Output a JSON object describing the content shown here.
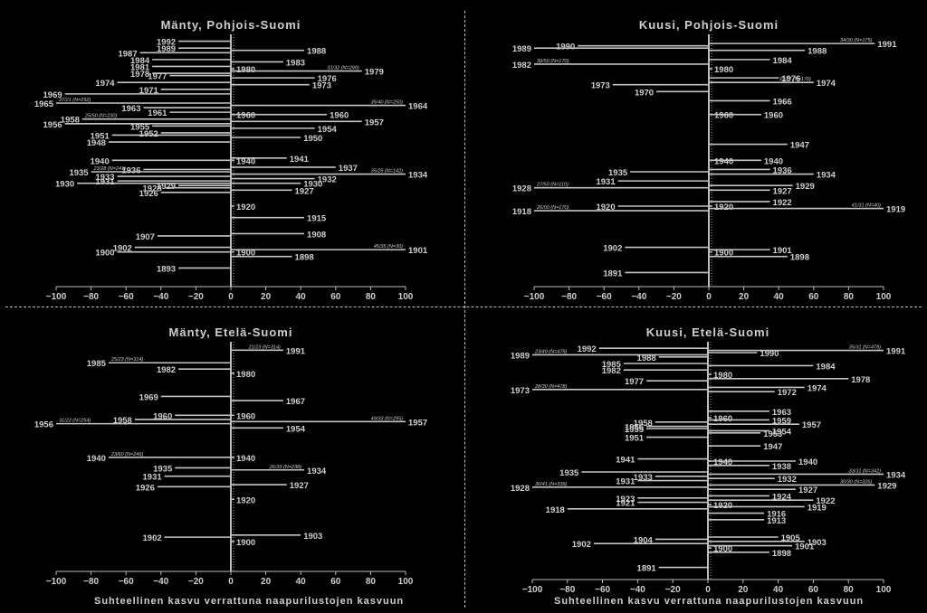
{
  "chart_data": [
    {
      "type": "bar",
      "orientation": "horizontal",
      "title": "Mänty, Pohjois-Suomi",
      "xlim": [
        -100,
        100
      ],
      "xticks": [
        "−100",
        "−80",
        "−60",
        "−40",
        "−20",
        "0",
        "20",
        "40",
        "60",
        "80",
        "100"
      ],
      "ylim": [
        1890,
        1995
      ],
      "bars": [
        {
          "year": "1992",
          "value": -30
        },
        {
          "year": "1989",
          "value": -30
        },
        {
          "year": "1988",
          "value": 42
        },
        {
          "year": "1987",
          "value": -52
        },
        {
          "year": "1984",
          "value": -45
        },
        {
          "year": "1983",
          "value": 30
        },
        {
          "year": "1981",
          "value": -45
        },
        {
          "year": "1980",
          "value": 2
        },
        {
          "year": "1979",
          "value": 75,
          "note": "31/32 (N=290)"
        },
        {
          "year": "1978",
          "value": -45
        },
        {
          "year": "1977",
          "value": -35
        },
        {
          "year": "1976",
          "value": 48
        },
        {
          "year": "1974",
          "value": -65
        },
        {
          "year": "1973",
          "value": 45
        },
        {
          "year": "1971",
          "value": -40
        },
        {
          "year": "1969",
          "value": -95
        },
        {
          "year": "1965",
          "value": -100,
          "note": "27/21 (N=252)"
        },
        {
          "year": "1964",
          "value": 100,
          "note": "35/40 (N=250)"
        },
        {
          "year": "1963",
          "value": -50
        },
        {
          "year": "1961",
          "value": -35
        },
        {
          "year": "1960",
          "value": 2
        },
        {
          "year": "1960",
          "value": 55
        },
        {
          "year": "1958",
          "value": -85,
          "note": "25/50 (N=230)"
        },
        {
          "year": "1957",
          "value": 75
        },
        {
          "year": "1956",
          "value": -95
        },
        {
          "year": "1955",
          "value": -45
        },
        {
          "year": "1954",
          "value": 48
        },
        {
          "year": "1952",
          "value": -40
        },
        {
          "year": "1951",
          "value": -68
        },
        {
          "year": "1950",
          "value": 40
        },
        {
          "year": "1948",
          "value": -70
        },
        {
          "year": "1941",
          "value": 32
        },
        {
          "year": "1940",
          "value": -68
        },
        {
          "year": "1940",
          "value": 2
        },
        {
          "year": "1937",
          "value": 60
        },
        {
          "year": "1936",
          "value": -50
        },
        {
          "year": "1935",
          "value": -80,
          "note": "23/28 (N=241)"
        },
        {
          "year": "1934",
          "value": 100,
          "note": "35/25 (N=142)"
        },
        {
          "year": "1933",
          "value": -65
        },
        {
          "year": "1932",
          "value": 48
        },
        {
          "year": "1931",
          "value": -65
        },
        {
          "year": "1930",
          "value": 40
        },
        {
          "year": "1930",
          "value": -88
        },
        {
          "year": "1929",
          "value": -30
        },
        {
          "year": "1928",
          "value": -38
        },
        {
          "year": "1927",
          "value": 35
        },
        {
          "year": "1926",
          "value": -40
        },
        {
          "year": "1920",
          "value": 2
        },
        {
          "year": "1915",
          "value": 42
        },
        {
          "year": "1908",
          "value": 42
        },
        {
          "year": "1907",
          "value": -42
        },
        {
          "year": "1902",
          "value": -55
        },
        {
          "year": "1901",
          "value": 100,
          "note": "45/35 (N=30)"
        },
        {
          "year": "1900",
          "value": -65
        },
        {
          "year": "1900",
          "value": 2
        },
        {
          "year": "1898",
          "value": 35
        },
        {
          "year": "1893",
          "value": -30
        }
      ]
    },
    {
      "type": "bar",
      "orientation": "horizontal",
      "title": "Kuusi, Pohjois-Suomi",
      "xlim": [
        -100,
        100
      ],
      "xticks": [
        "−100",
        "−80",
        "−60",
        "−40",
        "−20",
        "0",
        "20",
        "40",
        "60",
        "80",
        "100"
      ],
      "ylim": [
        1890,
        1995
      ],
      "bars": [
        {
          "year": "1991",
          "value": 95,
          "note": "34/30 (N=175)"
        },
        {
          "year": "1990",
          "value": -75
        },
        {
          "year": "1989",
          "value": -100
        },
        {
          "year": "1988",
          "value": 55
        },
        {
          "year": "1984",
          "value": 35
        },
        {
          "year": "1982",
          "value": -100,
          "note": "39/50 (N=170)"
        },
        {
          "year": "1980",
          "value": 2
        },
        {
          "year": "1976",
          "value": 40
        },
        {
          "year": "1974",
          "value": 60,
          "note": "33/27 (N=170)"
        },
        {
          "year": "1973",
          "value": -55
        },
        {
          "year": "1970",
          "value": -30
        },
        {
          "year": "1966",
          "value": 35
        },
        {
          "year": "1960",
          "value": 2
        },
        {
          "year": "1960",
          "value": 30
        },
        {
          "year": "1947",
          "value": 45
        },
        {
          "year": "1940",
          "value": 2
        },
        {
          "year": "1940",
          "value": 30
        },
        {
          "year": "1936",
          "value": 35
        },
        {
          "year": "1935",
          "value": -45
        },
        {
          "year": "1934",
          "value": 60
        },
        {
          "year": "1931",
          "value": -52
        },
        {
          "year": "1929",
          "value": 48
        },
        {
          "year": "1928",
          "value": -100,
          "note": "27/50 (N=110)"
        },
        {
          "year": "1927",
          "value": 35
        },
        {
          "year": "1922",
          "value": 35
        },
        {
          "year": "1920",
          "value": -52
        },
        {
          "year": "1920",
          "value": 2
        },
        {
          "year": "1919",
          "value": 100,
          "note": "41/31 (N=40)"
        },
        {
          "year": "1918",
          "value": -100,
          "note": "26/00 (N=170)"
        },
        {
          "year": "1902",
          "value": -48
        },
        {
          "year": "1901",
          "value": 35
        },
        {
          "year": "1900",
          "value": 2
        },
        {
          "year": "1898",
          "value": 45
        },
        {
          "year": "1891",
          "value": -48
        }
      ]
    },
    {
      "type": "bar",
      "orientation": "horizontal",
      "title": "Mänty, Etelä-Suomi",
      "xlim": [
        -100,
        100
      ],
      "xticks": [
        "−100",
        "−80",
        "−60",
        "−40",
        "−20",
        "0",
        "20",
        "40",
        "60",
        "80",
        "100"
      ],
      "xlabel": "Suhteellinen kasvu verrattuna naapurilustojen kasvuun",
      "ylim": [
        1890,
        1995
      ],
      "bars": [
        {
          "year": "1991",
          "value": 30,
          "note": "21/23 (N=314)"
        },
        {
          "year": "1985",
          "value": -70,
          "note": "25/23 (N=314)"
        },
        {
          "year": "1982",
          "value": -30
        },
        {
          "year": "1980",
          "value": 2
        },
        {
          "year": "1969",
          "value": -40
        },
        {
          "year": "1967",
          "value": 30
        },
        {
          "year": "1960",
          "value": -32
        },
        {
          "year": "1960",
          "value": 2
        },
        {
          "year": "1958",
          "value": -55
        },
        {
          "year": "1957",
          "value": 100,
          "note": "49/33 (N=295)"
        },
        {
          "year": "1956",
          "value": -100,
          "note": "31/22 (N=254)"
        },
        {
          "year": "1954",
          "value": 30
        },
        {
          "year": "1940",
          "value": -70,
          "note": "23/60 (N=246)"
        },
        {
          "year": "1940",
          "value": 2
        },
        {
          "year": "1935",
          "value": -32
        },
        {
          "year": "1934",
          "value": 42,
          "note": "26/33 (N=238)"
        },
        {
          "year": "1931",
          "value": -38
        },
        {
          "year": "1927",
          "value": 32
        },
        {
          "year": "1926",
          "value": -42
        },
        {
          "year": "1920",
          "value": 2
        },
        {
          "year": "1903",
          "value": 40
        },
        {
          "year": "1902",
          "value": -38
        },
        {
          "year": "1900",
          "value": 2
        }
      ]
    },
    {
      "type": "bar",
      "orientation": "horizontal",
      "title": "Kuusi, Etelä-Suomi",
      "xlim": [
        -100,
        100
      ],
      "xticks": [
        "−100",
        "−80",
        "−60",
        "−40",
        "−20",
        "0",
        "20",
        "40",
        "60",
        "80",
        "100"
      ],
      "xlabel": "Suhteellinen kasvu verrattuna naapurilustojen kasvuun",
      "ylim": [
        1890,
        1995
      ],
      "bars": [
        {
          "year": "1992",
          "value": -62
        },
        {
          "year": "1991",
          "value": 100,
          "note": "35/31 (N=478)"
        },
        {
          "year": "1990",
          "value": 28
        },
        {
          "year": "1989",
          "value": -100,
          "note": "23/40 (N=479)"
        },
        {
          "year": "1988",
          "value": -28
        },
        {
          "year": "1985",
          "value": -48
        },
        {
          "year": "1984",
          "value": 60
        },
        {
          "year": "1982",
          "value": -48
        },
        {
          "year": "1980",
          "value": 2
        },
        {
          "year": "1978",
          "value": 80
        },
        {
          "year": "1977",
          "value": -35
        },
        {
          "year": "1974",
          "value": 55
        },
        {
          "year": "1973",
          "value": -100,
          "note": "28/30 (N=478)"
        },
        {
          "year": "1972",
          "value": 38
        },
        {
          "year": "1963",
          "value": 35
        },
        {
          "year": "1960",
          "value": 2
        },
        {
          "year": "1959",
          "value": 35
        },
        {
          "year": "1958",
          "value": -30
        },
        {
          "year": "1957",
          "value": 52
        },
        {
          "year": "1956",
          "value": -35
        },
        {
          "year": "1955",
          "value": -35
        },
        {
          "year": "1954",
          "value": 35
        },
        {
          "year": "1953",
          "value": 30
        },
        {
          "year": "1951",
          "value": -35
        },
        {
          "year": "1947",
          "value": 30
        },
        {
          "year": "1941",
          "value": -40
        },
        {
          "year": "1940",
          "value": 2
        },
        {
          "year": "1940",
          "value": 50
        },
        {
          "year": "1938",
          "value": 35
        },
        {
          "year": "1935",
          "value": -72
        },
        {
          "year": "1934",
          "value": 100,
          "note": "33/31 (N=342)"
        },
        {
          "year": "1933",
          "value": -30
        },
        {
          "year": "1932",
          "value": 38
        },
        {
          "year": "1931",
          "value": -40
        },
        {
          "year": "1929",
          "value": 95,
          "note": "30/30 (N=326)"
        },
        {
          "year": "1928",
          "value": -100,
          "note": "30/41 (N=339)"
        },
        {
          "year": "1927",
          "value": 50
        },
        {
          "year": "1924",
          "value": 35
        },
        {
          "year": "1923",
          "value": -40
        },
        {
          "year": "1922",
          "value": 60
        },
        {
          "year": "1921",
          "value": -40
        },
        {
          "year": "1920",
          "value": 2
        },
        {
          "year": "1919",
          "value": 55
        },
        {
          "year": "1918",
          "value": -80
        },
        {
          "year": "1916",
          "value": 32
        },
        {
          "year": "1913",
          "value": 32
        },
        {
          "year": "1905",
          "value": 40
        },
        {
          "year": "1904",
          "value": -30
        },
        {
          "year": "1903",
          "value": 55
        },
        {
          "year": "1902",
          "value": -65
        },
        {
          "year": "1901",
          "value": 48
        },
        {
          "year": "1900",
          "value": 2
        },
        {
          "year": "1898",
          "value": 35
        },
        {
          "year": "1891",
          "value": -28
        }
      ]
    }
  ]
}
